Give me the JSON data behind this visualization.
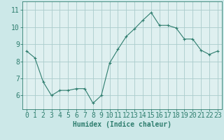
{
  "x": [
    0,
    1,
    2,
    3,
    4,
    5,
    6,
    7,
    8,
    9,
    10,
    11,
    12,
    13,
    14,
    15,
    16,
    17,
    18,
    19,
    20,
    21,
    22,
    23
  ],
  "y": [
    8.6,
    8.2,
    6.8,
    6.0,
    6.3,
    6.3,
    6.4,
    6.4,
    5.55,
    6.0,
    7.9,
    8.7,
    9.45,
    9.9,
    10.4,
    10.85,
    10.1,
    10.1,
    9.95,
    9.3,
    9.3,
    8.65,
    8.4,
    8.6
  ],
  "line_color": "#2e7d6e",
  "marker": "+",
  "marker_size": 3,
  "bg_color": "#cce8e8",
  "grid_color": "#aacccc",
  "axes_bg": "#dff0f0",
  "xlabel": "Humidex (Indice chaleur)",
  "ylabel_ticks": [
    6,
    7,
    8,
    9,
    10,
    11
  ],
  "xlim": [
    -0.5,
    23.5
  ],
  "ylim": [
    5.2,
    11.5
  ],
  "xlabel_fontsize": 7,
  "tick_fontsize": 7,
  "xticks": [
    0,
    1,
    2,
    3,
    4,
    5,
    6,
    7,
    8,
    9,
    10,
    11,
    12,
    13,
    14,
    15,
    16,
    17,
    18,
    19,
    20,
    21,
    22,
    23
  ]
}
